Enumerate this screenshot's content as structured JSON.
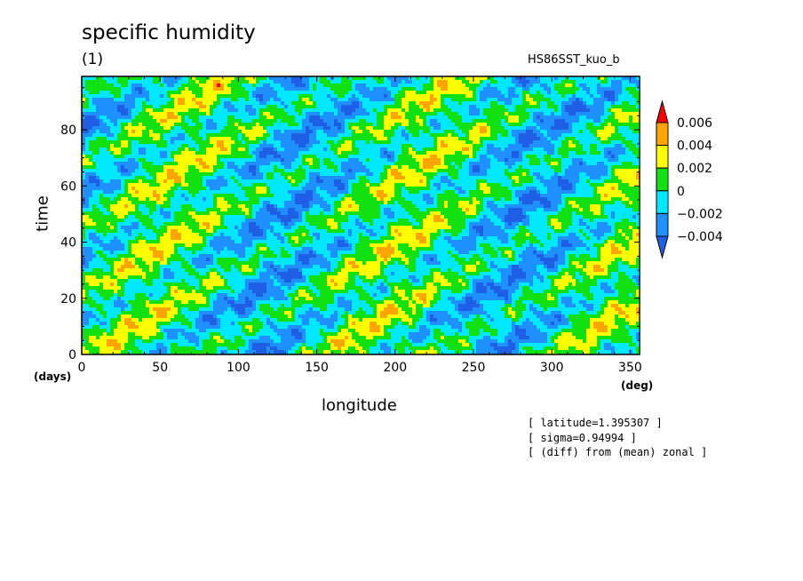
{
  "chart_data": {
    "type": "heatmap",
    "title": "specific humidity",
    "subtitle": "(1)",
    "run_label": "HS86SST_kuo_b",
    "xlabel": "longitude",
    "ylabel": "time",
    "x_unit": "(deg)",
    "y_unit": "(days)",
    "xlim": [
      0,
      356
    ],
    "ylim": [
      0,
      99
    ],
    "xticks": [
      0,
      50,
      100,
      150,
      200,
      250,
      300,
      350
    ],
    "yticks": [
      0,
      20,
      40,
      60,
      80
    ],
    "colorbar": {
      "levels": [
        -0.004,
        -0.002,
        0,
        0.002,
        0.004,
        0.006
      ],
      "tick_labels": [
        "0.006",
        "0.004",
        "0.002",
        "0",
        "−0.002",
        "−0.004"
      ],
      "colors": [
        "#1f5fe6",
        "#1e90ff",
        "#00e8ff",
        "#11e011",
        "#ffff00",
        "#ffa500",
        "#ff0000"
      ],
      "extend": "both"
    },
    "pattern": "eastward-propagating anomaly bands tilted from lower-left to upper-right"
  },
  "notes": [
    "[ latitude=1.395307 ]",
    "[ sigma=0.94994 ]",
    "[ (diff) from (mean) zonal ]"
  ]
}
